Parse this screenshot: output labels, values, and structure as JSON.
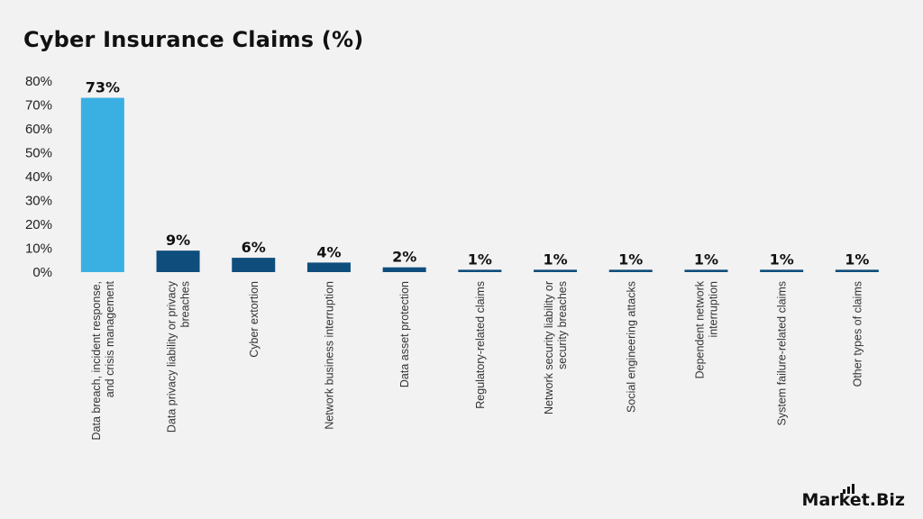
{
  "title": "Cyber Insurance Claims (%)",
  "brand": "Market.Biz",
  "colors": {
    "highlight": "#3ab0e2",
    "base": "#0f4e7c",
    "background": "#f2f2f2"
  },
  "chart_data": {
    "type": "bar",
    "title": "Cyber Insurance Claims (%)",
    "xlabel": "",
    "ylabel": "",
    "ylim": [
      0,
      80
    ],
    "yticks": [
      "0%",
      "10%",
      "20%",
      "30%",
      "40%",
      "50%",
      "60%",
      "70%",
      "80%"
    ],
    "grid": false,
    "categories": [
      [
        "Data breach, incident response,",
        "and crisis management"
      ],
      [
        "Data privacy liability or privacy",
        "breaches"
      ],
      [
        "Cyber extortion"
      ],
      [
        "Network business interruption"
      ],
      [
        "Data asset protection"
      ],
      [
        "Regulatory-related claims"
      ],
      [
        "Network security liability or",
        "security breaches"
      ],
      [
        "Social engineering attacks"
      ],
      [
        "Dependent network",
        "interruption"
      ],
      [
        "System failure-related claims"
      ],
      [
        "Other types of claims"
      ]
    ],
    "values": [
      73,
      9,
      6,
      4,
      2,
      1,
      1,
      1,
      1,
      1,
      1
    ],
    "data_labels": [
      "73%",
      "9%",
      "6%",
      "4%",
      "2%",
      "1%",
      "1%",
      "1%",
      "1%",
      "1%",
      "1%"
    ]
  }
}
